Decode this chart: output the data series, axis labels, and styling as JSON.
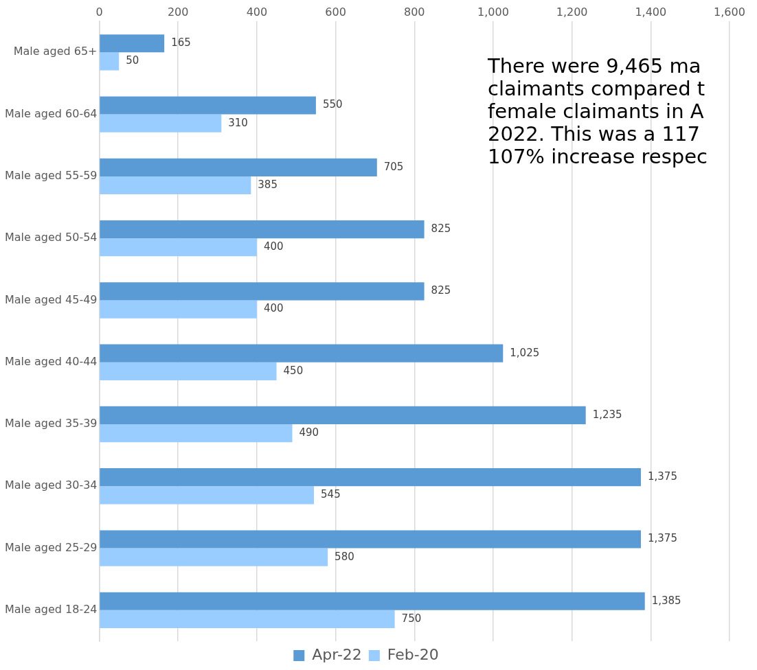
{
  "chart_data": {
    "type": "bar",
    "orientation": "horizontal",
    "categories": [
      "Male aged 65+",
      "Male aged 60-64",
      "Male aged 55-59",
      "Male aged 50-54",
      "Male aged 45-49",
      "Male aged 40-44",
      "Male aged 35-39",
      "Male aged 30-34",
      "Male aged 25-29",
      "Male aged 18-24"
    ],
    "series": [
      {
        "name": "Apr-22",
        "color": "#5b9bd5",
        "values": [
          165,
          550,
          705,
          825,
          825,
          1025,
          1235,
          1375,
          1375,
          1385
        ],
        "value_labels": [
          "165",
          "550",
          "705",
          "825",
          "825",
          "1,025",
          "1,235",
          "1,375",
          "1,375",
          "1,385"
        ]
      },
      {
        "name": "Feb-20",
        "color": "#99ccff",
        "values": [
          50,
          310,
          385,
          400,
          400,
          450,
          490,
          545,
          580,
          750
        ],
        "value_labels": [
          "50",
          "310",
          "385",
          "400",
          "400",
          "450",
          "490",
          "545",
          "580",
          "750"
        ]
      }
    ],
    "xlim": [
      0,
      1600
    ],
    "xticks": [
      0,
      200,
      400,
      600,
      800,
      {
        "value": 1000,
        "label": "1,000"
      },
      {
        "value": 1200,
        "label": "1,200"
      },
      {
        "value": 1400,
        "label": "1,400"
      },
      {
        "value": 1600,
        "label": "1,600"
      }
    ],
    "grid": "x",
    "legend": "bottom",
    "annotations": [
      "There were 9,465 ma\nclaimants compared t\nfemale claimants in A\n2022.  This was a 117\n107% increase respec"
    ]
  }
}
